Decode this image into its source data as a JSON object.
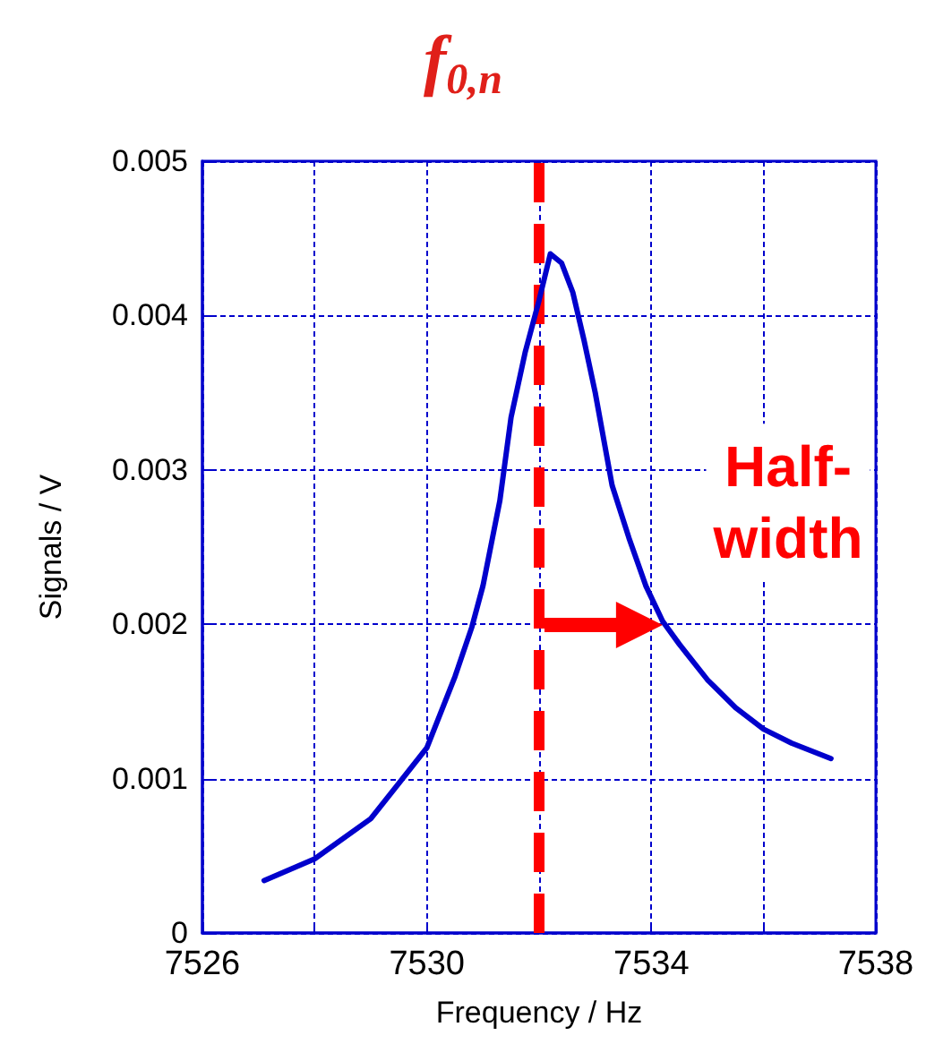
{
  "chart_data": {
    "type": "line",
    "title": "f$_{0,n}$",
    "xlabel": "Frequency / Hz",
    "ylabel": "Signals / V",
    "xlim": [
      7526,
      7538
    ],
    "xticks": [
      7526,
      {
        "value": 7528,
        "label": null
      },
      7530,
      {
        "value": 7532,
        "label": null
      },
      7534,
      {
        "value": 7536,
        "label": null
      },
      7538
    ],
    "ylim": [
      0,
      0.005
    ],
    "yticks": [
      0,
      0.001,
      0.002,
      0.003,
      0.004,
      0.005
    ],
    "grid": true,
    "marker": "none",
    "line_style": "solid",
    "series": [
      {
        "color": "#0000cc",
        "x": [
          7527.1,
          7528,
          7529,
          7529.5,
          7530,
          7530.5,
          7530.8,
          7531,
          7531.3,
          7531.5,
          7531.75,
          7532,
          7532.2,
          7532.4,
          7532.6,
          7532.8,
          7533,
          7533.3,
          7533.6,
          7533.9,
          7534.2,
          7534.5,
          7535,
          7535.5,
          7536,
          7536.5,
          7537.2
        ],
        "values": [
          0.00034,
          0.00048,
          0.00074,
          0.00097,
          0.0012,
          0.00166,
          0.00198,
          0.00225,
          0.0028,
          0.00334,
          0.00376,
          0.0041,
          0.0044,
          0.00434,
          0.00415,
          0.00384,
          0.0035,
          0.0029,
          0.00256,
          0.00225,
          0.00202,
          0.00187,
          0.00164,
          0.00146,
          0.00132,
          0.00123,
          0.00113
        ]
      }
    ],
    "ref_lines": [
      {
        "axis": "x",
        "value": 7532,
        "color": "#ff0000",
        "line_style": "dashed"
      }
    ],
    "annotations": [
      {
        "text": "Half-width",
        "x": 7534.2,
        "y": 0.002
      }
    ]
  }
}
